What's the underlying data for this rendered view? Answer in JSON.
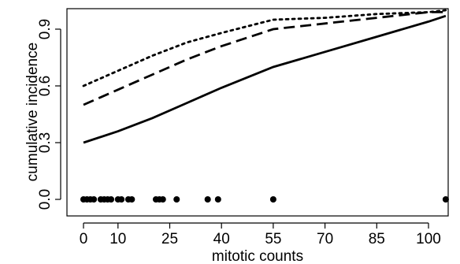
{
  "chart_data": {
    "type": "line",
    "title": "",
    "xlabel": "mitotic counts",
    "ylabel": "cumulative incidence",
    "xlim": [
      0,
      107
    ],
    "ylim": [
      0,
      1.0
    ],
    "x_ticks": [
      0,
      10,
      25,
      40,
      55,
      70,
      85,
      100
    ],
    "x_tick_labels": [
      "0",
      "10",
      "25",
      "40",
      "55",
      "70",
      "85",
      "100"
    ],
    "y_ticks": [
      0.0,
      0.3,
      0.6,
      0.9
    ],
    "y_tick_labels": [
      "0.0",
      "0.3",
      "0.6",
      "0.9"
    ],
    "grid": false,
    "legend": "none",
    "series": [
      {
        "style": "solid",
        "x": [
          0,
          10,
          20,
          30,
          40,
          55,
          70,
          85,
          100,
          105
        ],
        "y": [
          0.3,
          0.36,
          0.43,
          0.51,
          0.59,
          0.7,
          0.78,
          0.86,
          0.94,
          0.97
        ]
      },
      {
        "style": "dashed",
        "x": [
          0,
          10,
          20,
          30,
          40,
          55,
          70,
          85,
          100,
          105
        ],
        "y": [
          0.5,
          0.58,
          0.66,
          0.74,
          0.81,
          0.9,
          0.93,
          0.96,
          0.99,
          0.99
        ]
      },
      {
        "style": "dotted",
        "x": [
          0,
          10,
          20,
          30,
          40,
          55,
          70,
          85,
          100,
          105
        ],
        "y": [
          0.6,
          0.68,
          0.76,
          0.83,
          0.88,
          0.95,
          0.96,
          0.98,
          0.99,
          1.0
        ]
      }
    ],
    "rug": {
      "y": 0.0,
      "x": [
        0,
        1,
        2,
        3,
        5,
        6,
        7,
        8,
        10,
        11,
        13,
        14,
        21,
        22,
        23,
        27,
        36,
        39,
        55,
        105
      ]
    }
  }
}
